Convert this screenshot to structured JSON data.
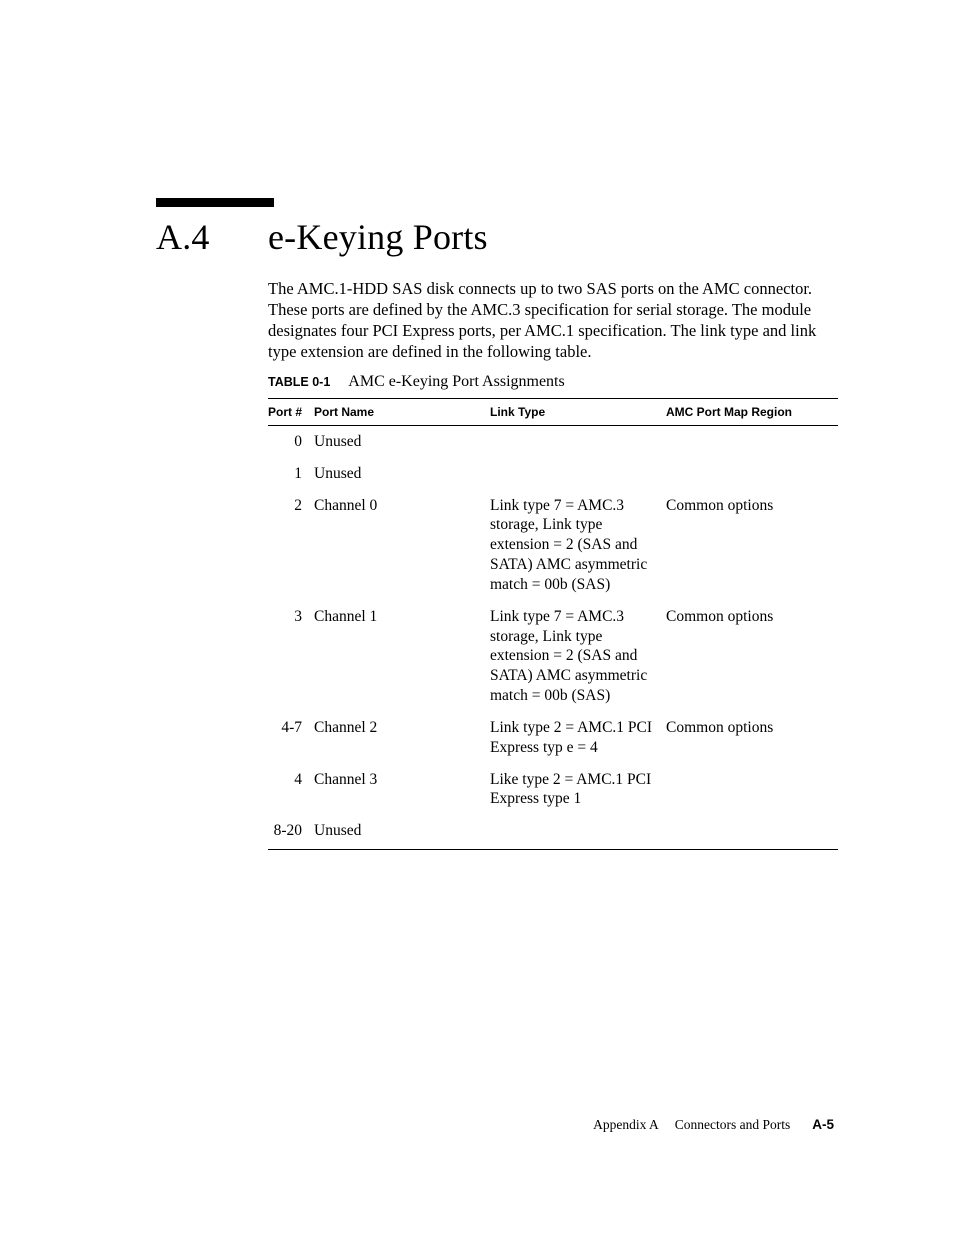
{
  "section": {
    "number": "A.4",
    "title": "e-Keying Ports"
  },
  "paragraph": "The AMC.1-HDD SAS disk connects up to two SAS ports on the AMC connector. These ports are defined by the AMC.3 specification for serial storage. The module designates four PCI Express ports, per AMC.1 specification. The link type and link type extension are defined in the following table.",
  "table": {
    "caption_label": "TABLE 0-1",
    "caption_title": "AMC e-Keying Port Assignments",
    "headers": {
      "port": "Port #",
      "name": "Port Name",
      "link": "Link Type",
      "region": "AMC Port Map Region"
    },
    "rows": [
      {
        "port": "0",
        "name": "Unused",
        "link": "",
        "region": ""
      },
      {
        "port": "1",
        "name": "Unused",
        "link": "",
        "region": ""
      },
      {
        "port": "2",
        "name": "Channel 0",
        "link": "Link type 7 = AMC.3 storage,\nLink type extension = 2 (SAS and SATA)\nAMC asymmetric match = 00b (SAS)",
        "region": "Common options"
      },
      {
        "port": "3",
        "name": "Channel 1",
        "link": "Link type 7 = AMC.3 storage,\nLink type extension = 2 (SAS and SATA)\nAMC asymmetric match = 00b (SAS)",
        "region": "Common options"
      },
      {
        "port": "4-7",
        "name": "Channel 2",
        "link": "Link type 2 = AMC.1 PCI Express typ e = 4",
        "region": "Common options"
      },
      {
        "port": "4",
        "name": "Channel 3",
        "link": "Like type 2 = AMC.1 PCI Express type 1",
        "region": ""
      },
      {
        "port": "8-20",
        "name": "Unused",
        "link": "",
        "region": ""
      }
    ]
  },
  "footer": {
    "appendix": "Appendix A",
    "title": "Connectors and Ports",
    "page": "A-5"
  }
}
